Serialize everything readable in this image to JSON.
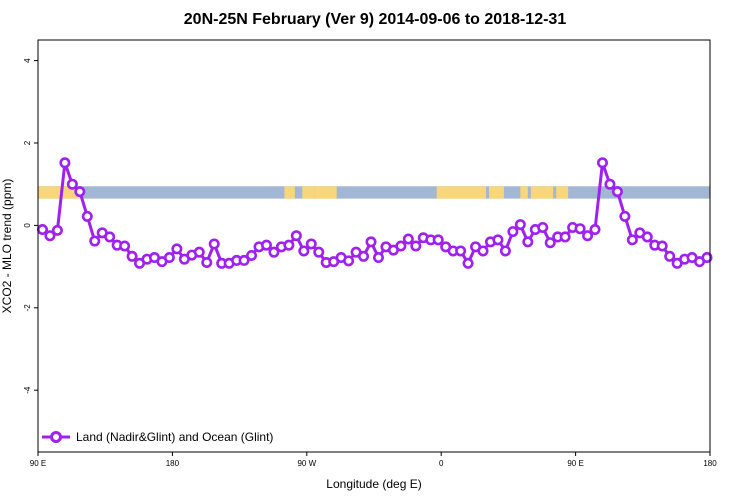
{
  "chart_data": {
    "type": "line",
    "title": "20N-25N February (Ver 9)   2014-09-06 to 2018-12-31",
    "xlabel": "Longitude (deg E)",
    "ylabel": "XCO2 - MLO trend (ppm)",
    "x_ticks": [
      "90 E",
      "180",
      "90 W",
      "0",
      "90 E",
      "180"
    ],
    "x_tick_values": [
      90,
      180,
      270,
      360,
      450,
      540
    ],
    "y_ticks": [
      "4",
      "2",
      "0",
      "-2",
      "-4"
    ],
    "y_tick_values": [
      4,
      2,
      0,
      -2,
      -4
    ],
    "xlim": [
      90,
      540
    ],
    "ylim": [
      -5.5,
      4.5
    ],
    "grid": false,
    "legend_position": "bottom-left",
    "land_strip": {
      "y_range": [
        0.65,
        0.95
      ],
      "ocean_color": "#a3b6d3",
      "land_color": "#f8d77a",
      "land_segments": [
        [
          90,
          120
        ],
        [
          255,
          262
        ],
        [
          267,
          275
        ],
        [
          275,
          290
        ],
        [
          357,
          390
        ],
        [
          392,
          402
        ],
        [
          413,
          418
        ],
        [
          420,
          435
        ],
        [
          437,
          445
        ]
      ]
    },
    "series": [
      {
        "name": "Land (Nadir&Glint) and Ocean (Glint)",
        "color": "#a020f0",
        "x": [
          93,
          98,
          103,
          108,
          113,
          118,
          123,
          128,
          133,
          138,
          143,
          148,
          153,
          158,
          163,
          168,
          173,
          178,
          183,
          188,
          193,
          198,
          203,
          208,
          213,
          218,
          223,
          228,
          233,
          238,
          243,
          248,
          253,
          258,
          263,
          268,
          273,
          278,
          283,
          288,
          293,
          298,
          303,
          308,
          313,
          318,
          323,
          328,
          333,
          338,
          343,
          348,
          353,
          358,
          363,
          368,
          373,
          378,
          383,
          388,
          393,
          398,
          403,
          408,
          413,
          418,
          423,
          428,
          433,
          438,
          443,
          448,
          453,
          458,
          463,
          468,
          473,
          478,
          483,
          488,
          493,
          498,
          503,
          508,
          513,
          518,
          523,
          528,
          533,
          538
        ],
        "y": [
          -0.1,
          -0.25,
          -0.12,
          1.52,
          1.0,
          0.82,
          0.22,
          -0.38,
          -0.18,
          -0.28,
          -0.48,
          -0.5,
          -0.75,
          -0.92,
          -0.82,
          -0.78,
          -0.88,
          -0.78,
          -0.57,
          -0.82,
          -0.72,
          -0.65,
          -0.9,
          -0.45,
          -0.92,
          -0.92,
          -0.85,
          -0.85,
          -0.73,
          -0.52,
          -0.48,
          -0.65,
          -0.52,
          -0.48,
          -0.25,
          -0.62,
          -0.45,
          -0.65,
          -0.9,
          -0.88,
          -0.78,
          -0.86,
          -0.65,
          -0.75,
          -0.4,
          -0.78,
          -0.52,
          -0.6,
          -0.5,
          -0.33,
          -0.5,
          -0.3,
          -0.35,
          -0.35,
          -0.52,
          -0.62,
          -0.62,
          -0.92,
          -0.52,
          -0.62,
          -0.4,
          -0.35,
          -0.62,
          -0.15,
          0.02,
          -0.4,
          -0.1,
          -0.05,
          -0.42,
          -0.28,
          -0.28,
          -0.05,
          -0.08,
          -0.25,
          -0.1,
          1.52,
          1.0,
          0.82,
          0.22,
          -0.35,
          -0.18,
          -0.28,
          -0.48,
          -0.5,
          -0.75,
          -0.92,
          -0.82,
          -0.78,
          -0.88,
          -0.78
        ]
      }
    ]
  }
}
